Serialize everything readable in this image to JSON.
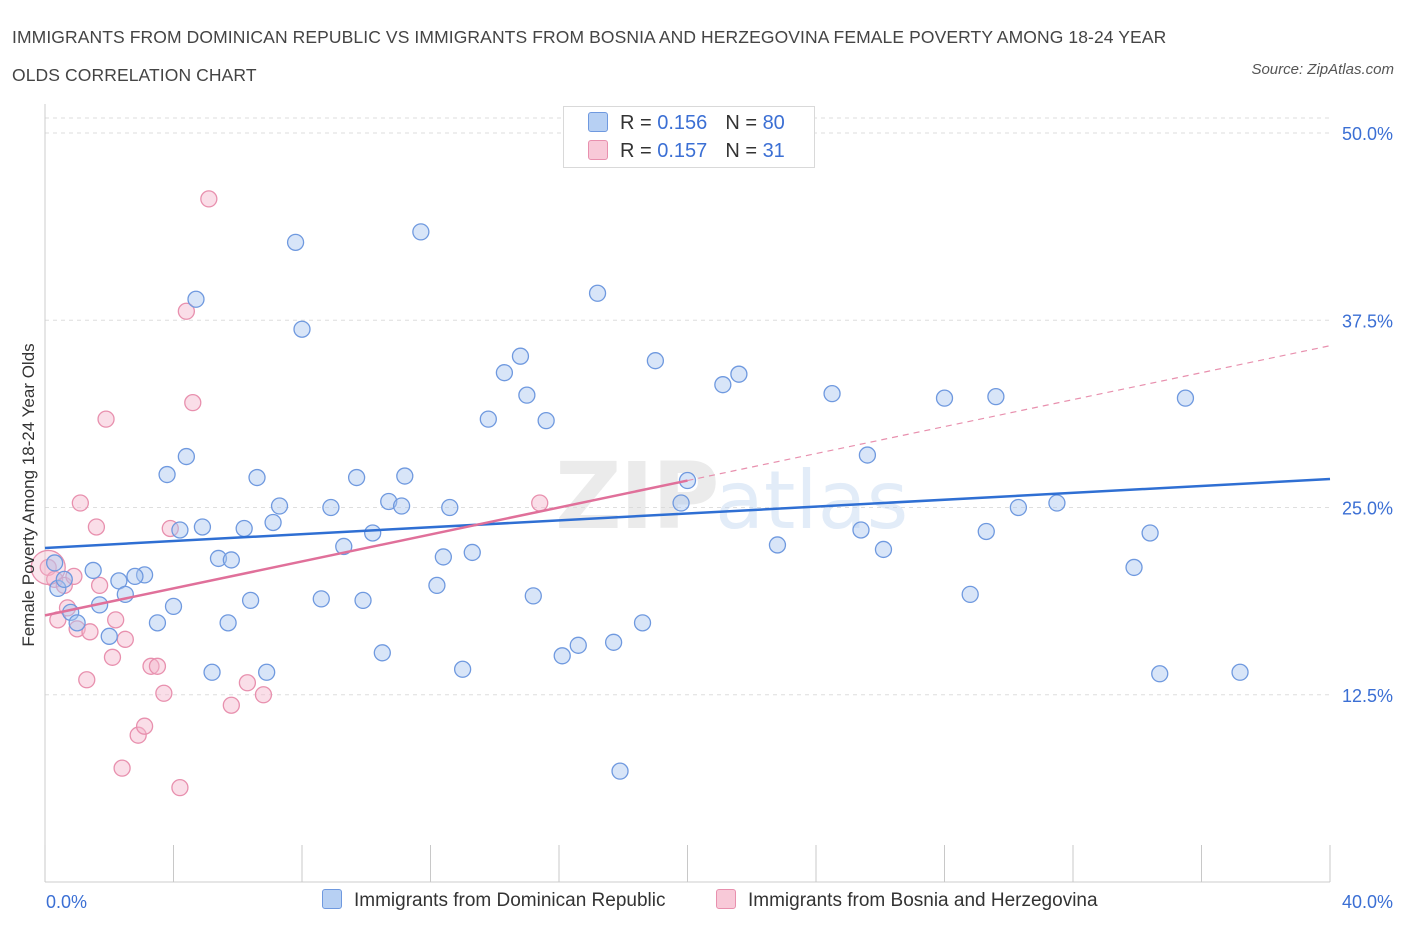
{
  "title": "IMMIGRANTS FROM DOMINICAN REPUBLIC VS IMMIGRANTS FROM BOSNIA AND HERZEGOVINA FEMALE POVERTY AMONG 18-24 YEAR OLDS CORRELATION CHART",
  "source": "Source: ZipAtlas.com",
  "watermark": {
    "zip": "ZIP",
    "atlas": "atlas"
  },
  "legend_top": [
    {
      "r_label": "R = ",
      "r_value": "0.156",
      "n_label": "N = ",
      "n_value": "80"
    },
    {
      "r_label": "R = ",
      "r_value": "0.157",
      "n_label": "N = ",
      "n_value": "31"
    }
  ],
  "colors": {
    "blue": "#3b6fd4",
    "blue_fill": "#a9c5ef",
    "blue_stroke": "#6f99df",
    "pink": "#e0709a",
    "pink_fill": "#f4b6cb",
    "pink_stroke": "#e890ae",
    "tick": "#3b6fd4",
    "grid": "#dddddd"
  },
  "chart_data": {
    "type": "scatter",
    "title": "IMMIGRANTS FROM DOMINICAN REPUBLIC VS IMMIGRANTS FROM BOSNIA AND HERZEGOVINA FEMALE POVERTY AMONG 18-24 YEAR OLDS CORRELATION CHART",
    "xlabel": "",
    "ylabel": "Female Poverty Among 18-24 Year Olds",
    "xlim": [
      0,
      40
    ],
    "ylim": [
      0,
      50
    ],
    "x_tick_labels": [
      {
        "value": 0,
        "label": "0.0%"
      },
      {
        "value": 40,
        "label": "40.0%"
      }
    ],
    "y_tick_labels": [
      {
        "value": 12.5,
        "label": "12.5%"
      },
      {
        "value": 25,
        "label": "25.0%"
      },
      {
        "value": 37.5,
        "label": "37.5%"
      },
      {
        "value": 50,
        "label": "50.0%"
      }
    ],
    "grid": true,
    "legend_position": "bottom",
    "series": [
      {
        "name": "Immigrants from Dominican Republic",
        "color": "#6f99df",
        "r": 0.156,
        "n": 80,
        "trend": {
          "x": [
            0,
            40
          ],
          "y": [
            22.3,
            26.9
          ]
        },
        "points": [
          [
            0.3,
            21.3
          ],
          [
            0.4,
            19.6
          ],
          [
            0.6,
            20.2
          ],
          [
            0.8,
            18.0
          ],
          [
            1.0,
            17.3
          ],
          [
            1.5,
            20.8
          ],
          [
            1.7,
            18.5
          ],
          [
            2.0,
            16.4
          ],
          [
            2.3,
            20.1
          ],
          [
            2.5,
            19.2
          ],
          [
            3.1,
            20.5
          ],
          [
            2.8,
            20.4
          ],
          [
            3.5,
            17.3
          ],
          [
            3.8,
            27.2
          ],
          [
            4.0,
            18.4
          ],
          [
            4.2,
            23.5
          ],
          [
            4.4,
            28.4
          ],
          [
            4.7,
            38.9
          ],
          [
            4.9,
            23.7
          ],
          [
            5.2,
            14.0
          ],
          [
            5.4,
            21.6
          ],
          [
            5.7,
            17.3
          ],
          [
            5.8,
            21.5
          ],
          [
            6.2,
            23.6
          ],
          [
            6.4,
            18.8
          ],
          [
            6.6,
            27.0
          ],
          [
            6.9,
            14.0
          ],
          [
            7.1,
            24.0
          ],
          [
            7.3,
            25.1
          ],
          [
            7.8,
            42.7
          ],
          [
            8.0,
            36.9
          ],
          [
            8.6,
            18.9
          ],
          [
            8.9,
            25.0
          ],
          [
            9.3,
            22.4
          ],
          [
            9.7,
            27.0
          ],
          [
            9.9,
            18.8
          ],
          [
            10.2,
            23.3
          ],
          [
            10.5,
            15.3
          ],
          [
            10.7,
            25.4
          ],
          [
            11.1,
            25.1
          ],
          [
            11.2,
            27.1
          ],
          [
            11.7,
            43.4
          ],
          [
            12.2,
            19.8
          ],
          [
            12.4,
            21.7
          ],
          [
            12.6,
            25.0
          ],
          [
            13.0,
            14.2
          ],
          [
            13.3,
            22.0
          ],
          [
            13.8,
            30.9
          ],
          [
            14.3,
            34.0
          ],
          [
            14.8,
            35.1
          ],
          [
            15.0,
            32.5
          ],
          [
            15.2,
            19.1
          ],
          [
            15.6,
            30.8
          ],
          [
            16.1,
            15.1
          ],
          [
            16.6,
            15.8
          ],
          [
            17.2,
            39.3
          ],
          [
            17.7,
            16.0
          ],
          [
            17.9,
            7.4
          ],
          [
            18.6,
            17.3
          ],
          [
            19.0,
            34.8
          ],
          [
            19.8,
            25.3
          ],
          [
            20.0,
            26.8
          ],
          [
            21.1,
            33.2
          ],
          [
            21.6,
            33.9
          ],
          [
            22.8,
            22.5
          ],
          [
            24.5,
            32.6
          ],
          [
            25.4,
            23.5
          ],
          [
            25.6,
            28.5
          ],
          [
            26.1,
            22.2
          ],
          [
            28.0,
            32.3
          ],
          [
            28.8,
            19.2
          ],
          [
            29.3,
            23.4
          ],
          [
            29.6,
            32.4
          ],
          [
            30.3,
            25.0
          ],
          [
            31.5,
            25.3
          ],
          [
            33.9,
            21.0
          ],
          [
            34.4,
            23.3
          ],
          [
            34.7,
            13.9
          ],
          [
            35.5,
            32.3
          ],
          [
            37.2,
            14.0
          ]
        ]
      },
      {
        "name": "Immigrants from Bosnia and Herzegovina",
        "color": "#e890ae",
        "r": 0.157,
        "n": 31,
        "trend": {
          "x": [
            0,
            20.0
          ],
          "y": [
            17.8,
            26.8
          ]
        },
        "trend_dashed": {
          "x": [
            20.0,
            40
          ],
          "y": [
            26.8,
            35.8
          ]
        },
        "points": [
          [
            0.1,
            21.0
          ],
          [
            0.3,
            20.2
          ],
          [
            0.4,
            17.5
          ],
          [
            0.6,
            19.8
          ],
          [
            0.7,
            18.3
          ],
          [
            0.9,
            20.4
          ],
          [
            1.0,
            16.9
          ],
          [
            1.1,
            25.3
          ],
          [
            1.3,
            13.5
          ],
          [
            1.4,
            16.7
          ],
          [
            1.6,
            23.7
          ],
          [
            1.7,
            19.8
          ],
          [
            1.9,
            30.9
          ],
          [
            2.1,
            15.0
          ],
          [
            2.2,
            17.5
          ],
          [
            2.4,
            7.6
          ],
          [
            2.5,
            16.2
          ],
          [
            2.9,
            9.8
          ],
          [
            3.1,
            10.4
          ],
          [
            3.3,
            14.4
          ],
          [
            3.5,
            14.4
          ],
          [
            3.7,
            12.6
          ],
          [
            3.9,
            23.6
          ],
          [
            4.2,
            6.3
          ],
          [
            4.4,
            38.1
          ],
          [
            4.6,
            32.0
          ],
          [
            5.1,
            45.6
          ],
          [
            5.8,
            11.8
          ],
          [
            6.3,
            13.3
          ],
          [
            6.8,
            12.5
          ],
          [
            15.4,
            25.3
          ]
        ]
      }
    ]
  }
}
